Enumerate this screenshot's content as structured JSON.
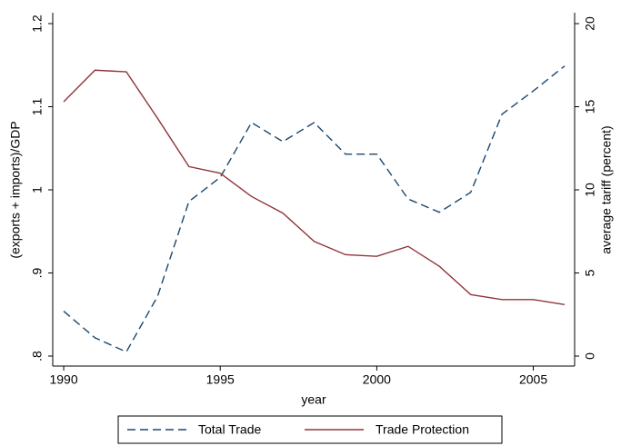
{
  "chart_data": {
    "type": "line",
    "x": [
      1990,
      1991,
      1992,
      1993,
      1994,
      1995,
      1996,
      1997,
      1998,
      1999,
      2000,
      2001,
      2002,
      2003,
      2004,
      2005,
      2006
    ],
    "xlim": [
      1989.65,
      2006.32
    ],
    "xticks": [
      1990,
      1995,
      2000,
      2005
    ],
    "xlabel": "year",
    "ylabel": "(exports + imports)/GDP",
    "y2label": "average tariff (percent)",
    "ylim": [
      0.8,
      1.2
    ],
    "yticks": [
      {
        "value": 0.8,
        "label": ".8"
      },
      {
        "value": 0.9,
        "label": ".9"
      },
      1,
      1.1,
      1.2
    ],
    "y2lim": [
      0,
      20
    ],
    "y2ticks": [
      0,
      5,
      10,
      15,
      20
    ],
    "legend": "bottom",
    "series": [
      {
        "name": "Total Trade",
        "color": "#1a476f",
        "line_style": "dashed",
        "values": [
          0.854,
          0.822,
          0.805,
          0.872,
          0.986,
          1.015,
          1.081,
          1.058,
          1.081,
          1.043,
          1.043,
          0.989,
          0.973,
          0.997,
          1.091,
          1.119,
          1.149
        ]
      },
      {
        "name": "Trade Protection",
        "color": "#90353b",
        "line_style": "solid",
        "axis": "y2",
        "values": [
          15.3,
          17.2,
          17.1,
          14.3,
          11.4,
          11.0,
          9.6,
          8.6,
          6.9,
          6.1,
          6.0,
          6.6,
          5.4,
          3.7,
          3.4,
          3.4,
          3.1
        ]
      }
    ]
  }
}
